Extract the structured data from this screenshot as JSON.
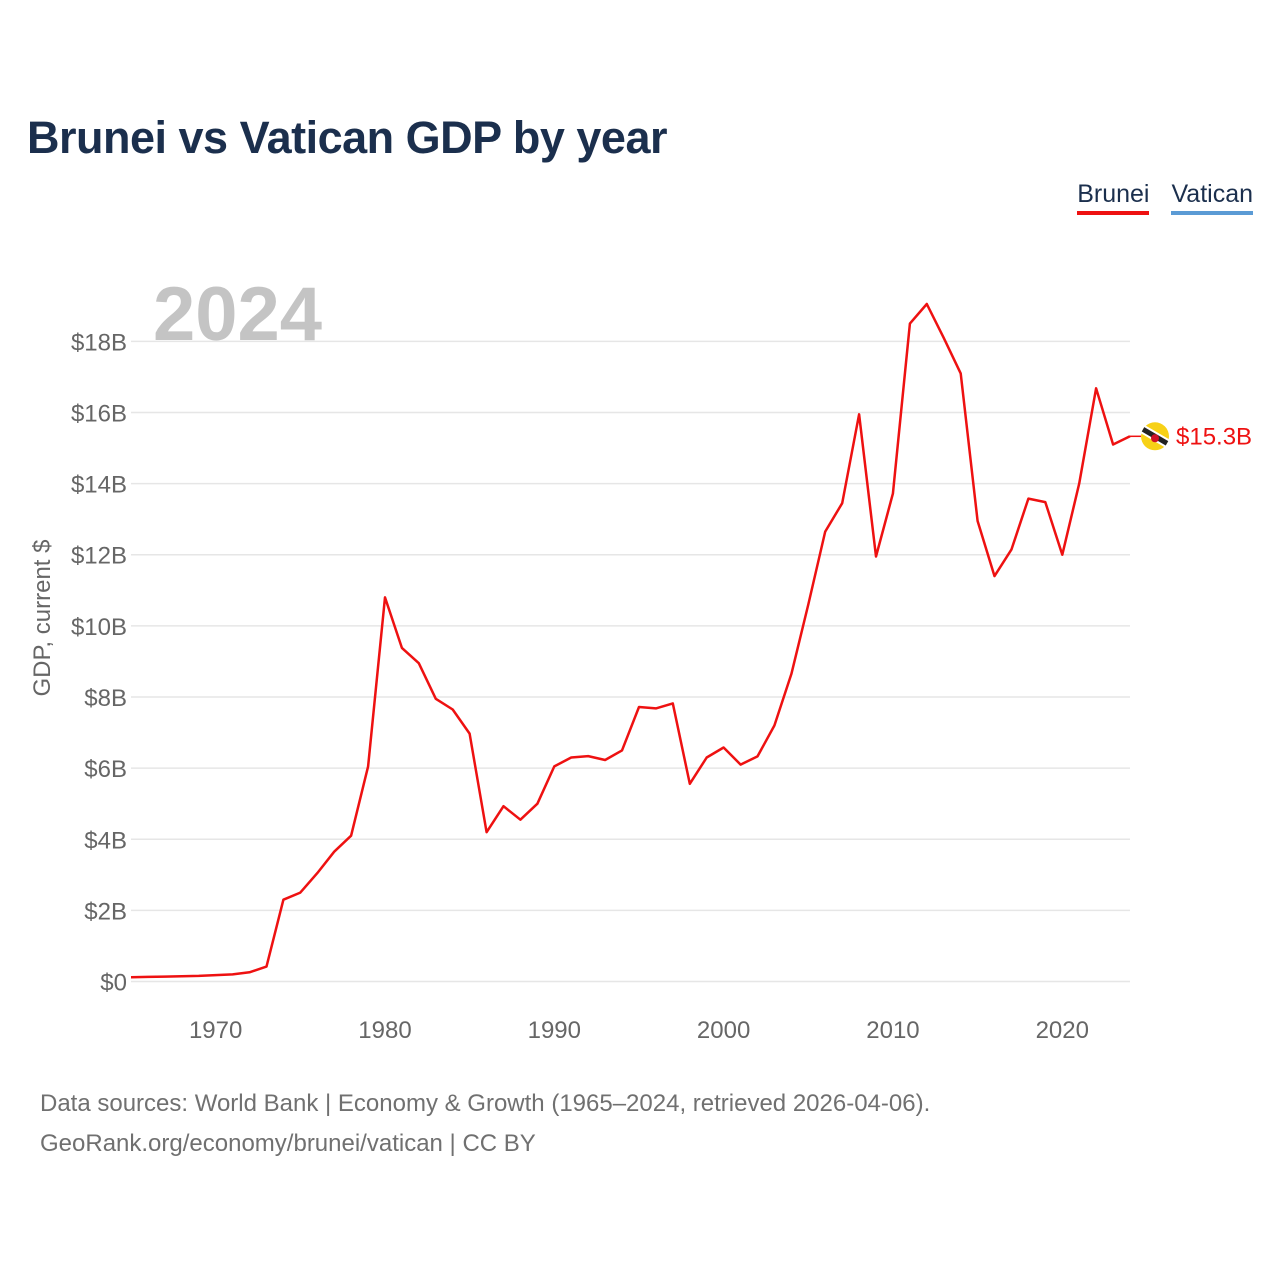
{
  "title": "Brunei vs Vatican GDP by year",
  "legend": [
    {
      "label": "Brunei",
      "color": "#ee1111"
    },
    {
      "label": "Vatican",
      "color": "#5b9bd5"
    }
  ],
  "year_watermark": "2024",
  "end_label": "$15.3B",
  "flag_icon": "brunei-flag-icon",
  "footer": {
    "line1": "Data sources: World Bank | Economy & Growth (1965–2024, retrieved 2026-04-06).",
    "line2": "GeoRank.org/economy/brunei/vatican | CC BY"
  },
  "colors": {
    "title": "#1b2f4d",
    "brunei": "#ee1111",
    "vatican": "#5b9bd5",
    "grid": "#e6e6e6",
    "axis_text": "#666666",
    "watermark": "#c4c4c4"
  },
  "chart_data": {
    "type": "line",
    "title": "Brunei vs Vatican GDP by year",
    "xlabel": "",
    "ylabel": "GDP, current $",
    "xlim": [
      1965,
      2024
    ],
    "ylim": [
      -0.8,
      19.5
    ],
    "yticks": [
      {
        "value": 0,
        "label": "$0"
      },
      {
        "value": 2,
        "label": "$2B"
      },
      {
        "value": 4,
        "label": "$4B"
      },
      {
        "value": 6,
        "label": "$6B"
      },
      {
        "value": 8,
        "label": "$8B"
      },
      {
        "value": 10,
        "label": "$10B"
      },
      {
        "value": 12,
        "label": "$12B"
      },
      {
        "value": 14,
        "label": "$14B"
      },
      {
        "value": 16,
        "label": "$16B"
      },
      {
        "value": 18,
        "label": "$18B"
      }
    ],
    "xticks": [
      {
        "value": 1970,
        "label": "1970"
      },
      {
        "value": 1980,
        "label": "1980"
      },
      {
        "value": 1990,
        "label": "1990"
      },
      {
        "value": 2000,
        "label": "2000"
      },
      {
        "value": 2010,
        "label": "2010"
      },
      {
        "value": 2020,
        "label": "2020"
      }
    ],
    "grid": true,
    "legend_position": "top-right",
    "series": [
      {
        "name": "Brunei",
        "unit": "billion current US$",
        "x": [
          1965,
          1966,
          1967,
          1968,
          1969,
          1970,
          1971,
          1972,
          1973,
          1974,
          1975,
          1976,
          1977,
          1978,
          1979,
          1980,
          1981,
          1982,
          1983,
          1984,
          1985,
          1986,
          1987,
          1988,
          1989,
          1990,
          1991,
          1992,
          1993,
          1994,
          1995,
          1996,
          1997,
          1998,
          1999,
          2000,
          2001,
          2002,
          2003,
          2004,
          2005,
          2006,
          2007,
          2008,
          2009,
          2010,
          2011,
          2012,
          2013,
          2014,
          2015,
          2016,
          2017,
          2018,
          2019,
          2020,
          2021,
          2022,
          2023,
          2024
        ],
        "values": [
          0.12,
          0.13,
          0.14,
          0.15,
          0.16,
          0.18,
          0.2,
          0.26,
          0.42,
          2.3,
          2.5,
          3.05,
          3.65,
          4.1,
          6.05,
          10.8,
          9.38,
          8.95,
          7.95,
          7.65,
          6.97,
          4.2,
          4.93,
          4.55,
          5.0,
          6.05,
          6.3,
          6.34,
          6.23,
          6.5,
          7.72,
          7.68,
          7.82,
          5.56,
          6.3,
          6.58,
          6.1,
          6.33,
          7.2,
          8.65,
          10.6,
          12.65,
          13.45,
          15.95,
          11.95,
          13.72,
          18.5,
          19.05,
          18.1,
          17.1,
          12.95,
          11.4,
          12.15,
          13.58,
          13.48,
          12.0,
          14.0,
          16.68,
          15.1,
          15.33
        ]
      },
      {
        "name": "Vatican",
        "unit": "billion current US$",
        "x": [],
        "values": []
      }
    ]
  }
}
